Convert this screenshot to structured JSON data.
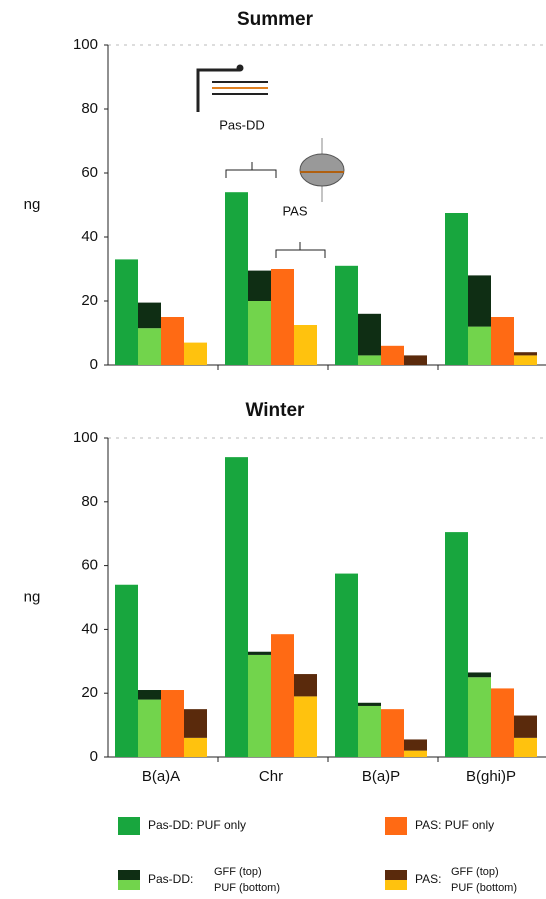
{
  "chart_data": [
    {
      "type": "bar",
      "title": "Summer",
      "y_label": "ng",
      "categories": [
        null,
        null,
        null,
        null
      ],
      "ylim": [
        0,
        100
      ],
      "yticks": [
        0,
        20,
        40,
        60,
        80,
        100
      ],
      "series": [
        {
          "color": "#18a63e",
          "group": 0,
          "values": [
            33,
            54,
            31,
            47.5
          ]
        },
        {
          "color": "#72d44c",
          "group": 1,
          "values": [
            11.5,
            20,
            3,
            12
          ]
        },
        {
          "color": "#0f2e14",
          "group": 1,
          "values": [
            8,
            9.5,
            13,
            16
          ]
        },
        {
          "color": "#ff6a14",
          "group": 2,
          "values": [
            15,
            30,
            6,
            15
          ]
        },
        {
          "color": "#ffc20e",
          "group": 3,
          "values": [
            7,
            12.5,
            0,
            3
          ]
        },
        {
          "color": "#5a2a0c",
          "group": 3,
          "values": [
            0,
            0,
            3,
            1
          ]
        }
      ],
      "annotations": [
        "Pas-DD",
        "PAS"
      ]
    },
    {
      "type": "bar",
      "title": "Winter",
      "y_label": "ng",
      "categories": [
        "B(a)A",
        "Chr",
        "B(a)P",
        "B(ghi)P"
      ],
      "ylim": [
        0,
        100
      ],
      "yticks": [
        0,
        20,
        40,
        60,
        80,
        100
      ],
      "series": [
        {
          "color": "#18a63e",
          "group": 0,
          "values": [
            54,
            94,
            57.5,
            70.5
          ]
        },
        {
          "color": "#72d44c",
          "group": 1,
          "values": [
            18,
            32,
            16,
            25
          ]
        },
        {
          "color": "#0f2e14",
          "group": 1,
          "values": [
            3,
            1,
            1,
            1.5
          ]
        },
        {
          "color": "#ff6a14",
          "group": 2,
          "values": [
            21,
            38.5,
            15,
            21.5
          ]
        },
        {
          "color": "#ffc20e",
          "group": 3,
          "values": [
            6,
            19,
            2,
            6
          ]
        },
        {
          "color": "#5a2a0c",
          "group": 3,
          "values": [
            9,
            7,
            3.5,
            7
          ]
        }
      ]
    }
  ],
  "legend": [
    {
      "text": "Pas-DD: PUF only"
    },
    {
      "text": "PAS: PUF only"
    },
    {
      "text": "Pas-DD:",
      "lines": [
        "GFF (top)",
        "PUF (bottom)"
      ]
    },
    {
      "text": "PAS:",
      "lines": [
        "GFF (top)",
        "PUF (bottom)"
      ]
    }
  ]
}
